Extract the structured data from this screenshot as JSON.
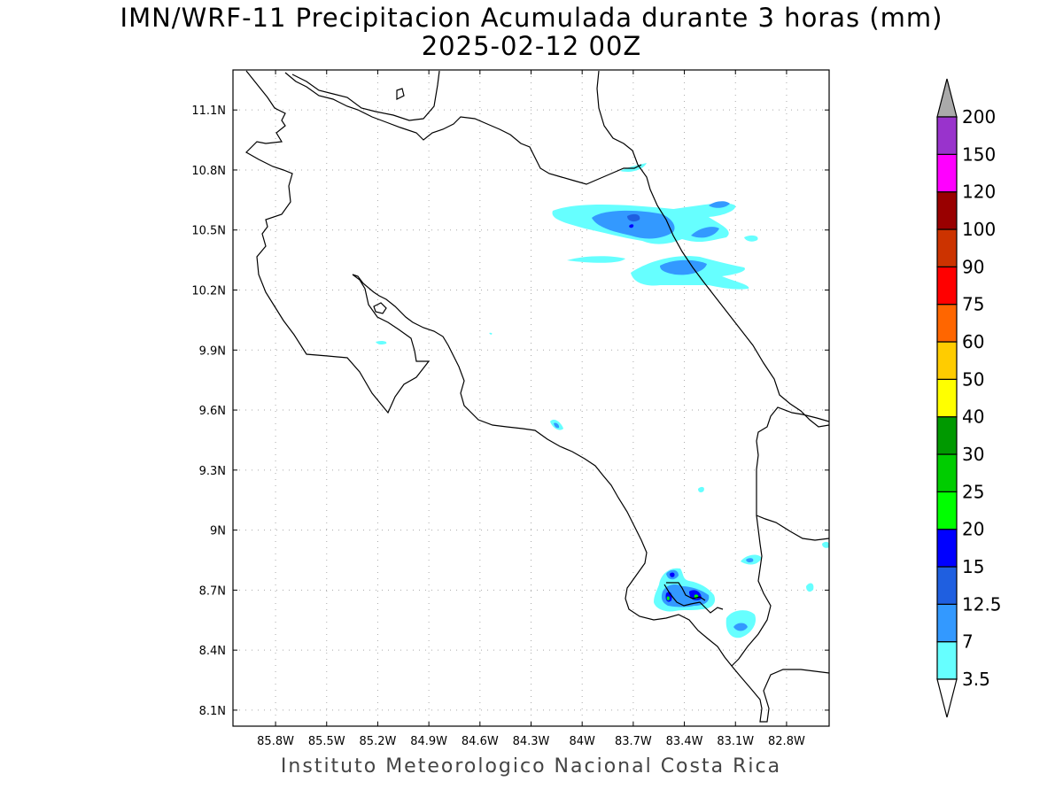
{
  "title": "IMN/WRF-11 Precipitacion Acumulada durante 3 horas (mm)",
  "subtitle": "2025-02-12 00Z",
  "footer": "Instituto Meteorologico Nacional Costa Rica",
  "map": {
    "lon_range": [
      -86.05,
      -82.55
    ],
    "lat_range": [
      8.02,
      11.3
    ],
    "lon_ticks": [
      "85.8W",
      "85.5W",
      "85.2W",
      "84.9W",
      "84.6W",
      "84.3W",
      "84W",
      "83.7W",
      "83.4W",
      "83.1W",
      "82.8W"
    ],
    "lon_values": [
      -85.8,
      -85.5,
      -85.2,
      -84.9,
      -84.6,
      -84.3,
      -84.0,
      -83.7,
      -83.4,
      -83.1,
      -82.8
    ],
    "lat_ticks": [
      "11.1N",
      "10.8N",
      "10.5N",
      "10.2N",
      "9.9N",
      "9.6N",
      "9.3N",
      "9N",
      "8.7N",
      "8.4N",
      "8.1N"
    ],
    "lat_values": [
      11.1,
      10.8,
      10.5,
      10.2,
      9.9,
      9.6,
      9.3,
      9.0,
      8.7,
      8.4,
      8.1
    ],
    "grid": true
  },
  "colorbar": {
    "labels": [
      "3.5",
      "7",
      "12.5",
      "15",
      "20",
      "25",
      "30",
      "40",
      "50",
      "60",
      "75",
      "90",
      "100",
      "120",
      "150",
      "200"
    ],
    "colors": [
      "#66ffff",
      "#3399ff",
      "#1f5fe0",
      "#0000ff",
      "#00ff00",
      "#00cc00",
      "#009900",
      "#ffff00",
      "#ffcc00",
      "#ff6600",
      "#ff0000",
      "#cc3300",
      "#990000",
      "#ff00ff",
      "#9933cc",
      "#f5f5f5"
    ],
    "over_color": "#aaaaaa",
    "under_color": "#ffffff"
  },
  "precip_colors": {
    "light": "#66ffff",
    "moderate": "#3399ff",
    "heavy": "#1f5fe0",
    "very_heavy": "#0000ff",
    "green": "#00ff00"
  }
}
